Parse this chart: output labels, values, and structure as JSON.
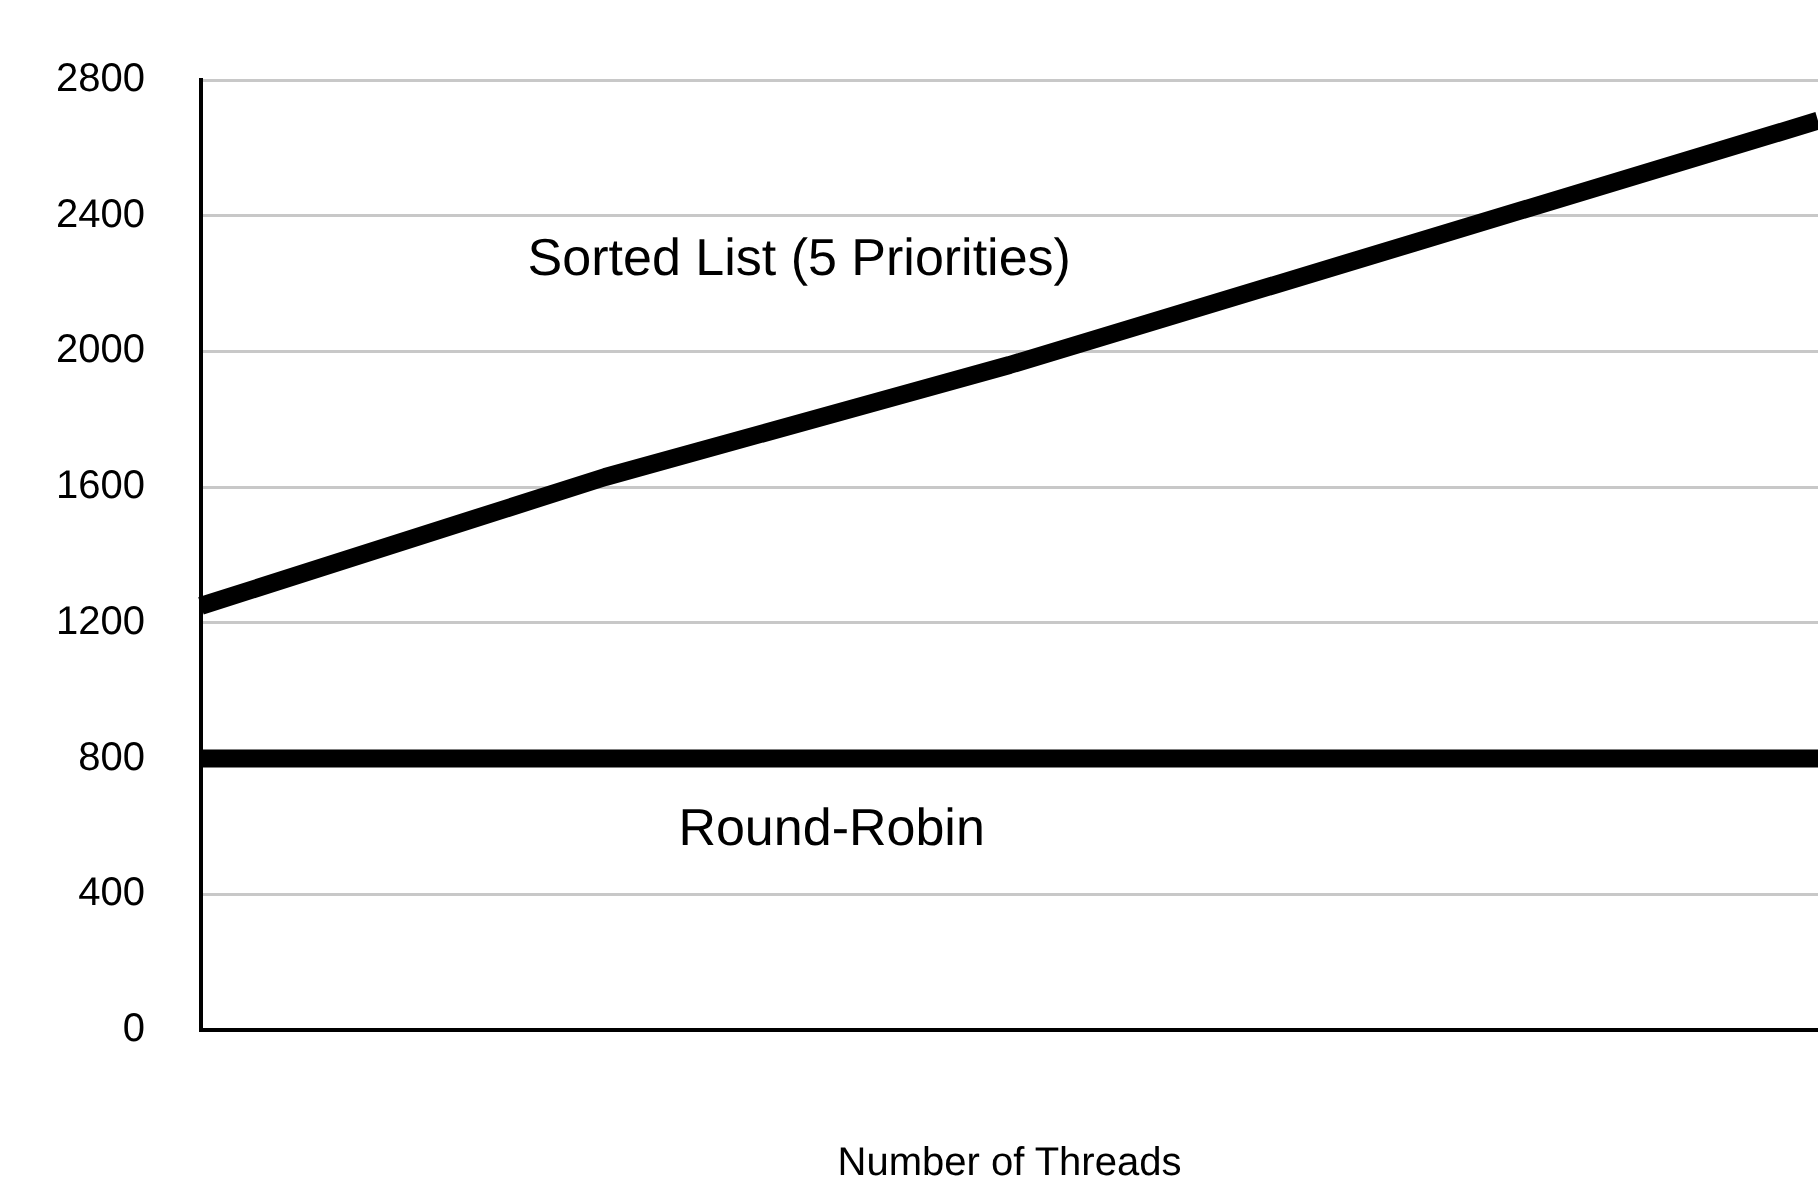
{
  "chart_data": {
    "type": "line",
    "xlabel": "Number of Threads",
    "categories": [
      null,
      null,
      null,
      null,
      null
    ],
    "series": [
      {
        "name": "Sorted List (5 Priorities)",
        "color": "#000000",
        "values": [
          1250,
          1630,
          1960,
          2320,
          2680
        ]
      },
      {
        "name": "Round-Robin",
        "color": "#000000",
        "values": [
          800,
          800,
          800,
          800,
          800
        ]
      }
    ],
    "ylim": [
      0,
      2800
    ],
    "yticks": [
      0,
      400,
      800,
      1200,
      1600,
      2000,
      2400,
      2800
    ],
    "grid": "y",
    "legend": false,
    "marker": "none",
    "line_style": "solid"
  }
}
